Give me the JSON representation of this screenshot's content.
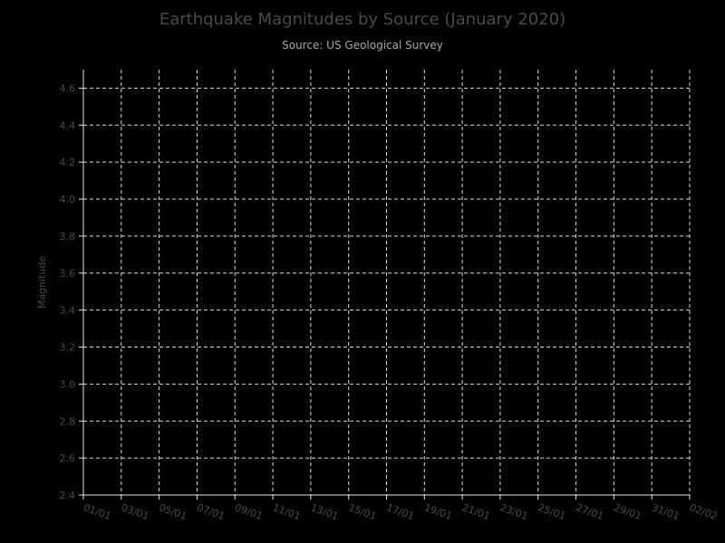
{
  "chart_data": {
    "type": "scatter",
    "title": "Earthquake Magnitudes by Source (January 2020)",
    "subtitle": "Source: US Geological Survey",
    "xlabel": "",
    "ylabel": "Magnitude",
    "xlim": [
      "2020-01-01",
      "2020-02-02"
    ],
    "ylim": [
      2.4,
      4.7
    ],
    "x_tick_dates": [
      "2020-01-01",
      "2020-01-03",
      "2020-01-05",
      "2020-01-07",
      "2020-01-09",
      "2020-01-11",
      "2020-01-13",
      "2020-01-15",
      "2020-01-17",
      "2020-01-19",
      "2020-01-21",
      "2020-01-23",
      "2020-01-25",
      "2020-01-27",
      "2020-01-29",
      "2020-01-31",
      "2020-02-02"
    ],
    "x_tick_labels": [
      "01/01",
      "03/01",
      "05/01",
      "07/01",
      "09/01",
      "11/01",
      "13/01",
      "15/01",
      "17/01",
      "19/01",
      "21/01",
      "23/01",
      "25/01",
      "27/01",
      "29/01",
      "31/01",
      "02/02"
    ],
    "y_ticks": [
      2.4,
      2.6,
      2.8,
      3.0,
      3.2,
      3.4,
      3.6,
      3.8,
      4.0,
      4.2,
      4.4,
      4.6
    ],
    "y_tick_labels": [
      "2.4",
      "2.6",
      "2.8",
      "3.0",
      "3.2",
      "3.4",
      "3.6",
      "3.8",
      "4.0",
      "4.2",
      "4.4",
      "4.6"
    ],
    "grid": true,
    "series": []
  }
}
